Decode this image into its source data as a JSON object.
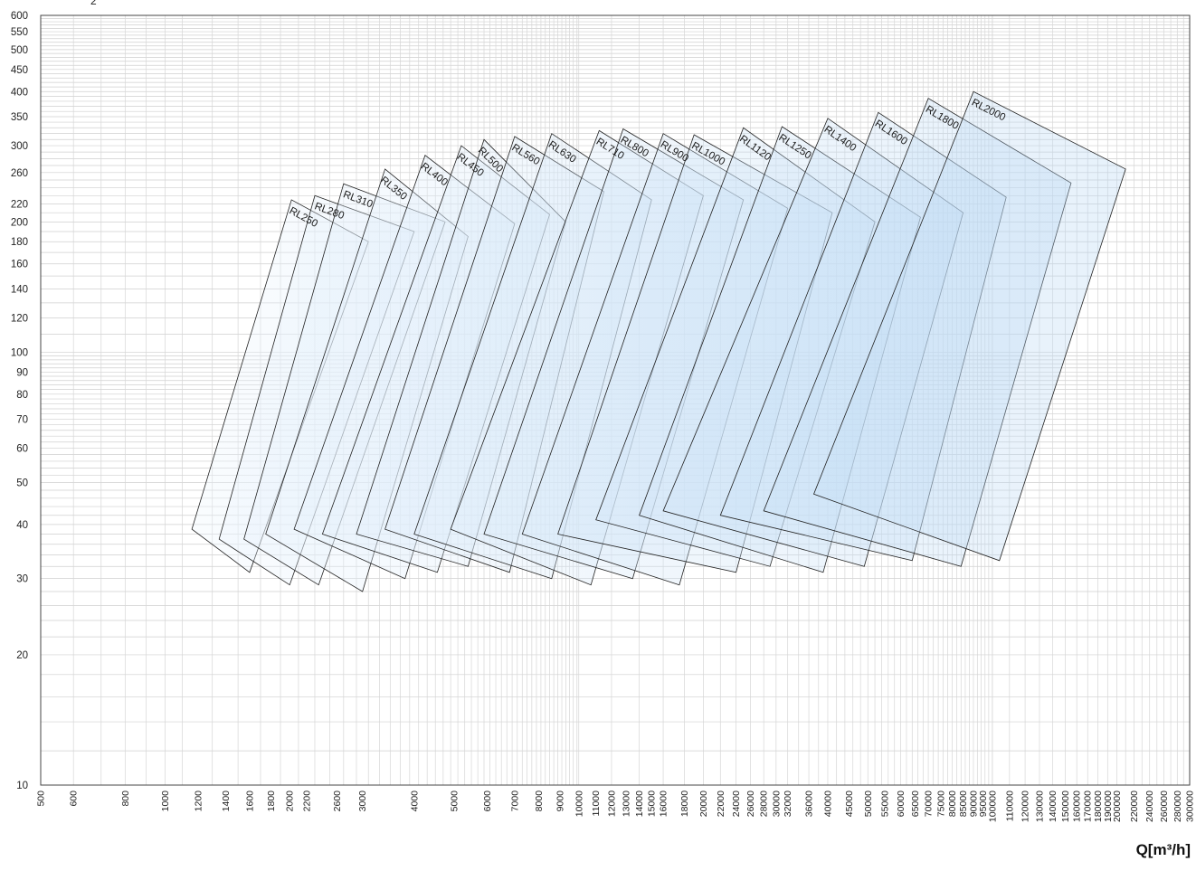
{
  "chart_data": {
    "type": "area",
    "title": "",
    "xlabel": "Q[m³/h]",
    "ylabel": "",
    "ylabel_fragment": "2",
    "x_scale": "log",
    "y_scale": "log",
    "xlim": [
      500,
      300000
    ],
    "ylim": [
      10,
      600
    ],
    "grid": true,
    "y_ticks": [
      10,
      20,
      30,
      40,
      50,
      60,
      70,
      80,
      90,
      100,
      120,
      140,
      160,
      180,
      200,
      220,
      260,
      300,
      350,
      400,
      450,
      500,
      550,
      600
    ],
    "x_ticks": [
      500,
      600,
      800,
      1000,
      1200,
      1400,
      1600,
      1800,
      2000,
      2200,
      2600,
      3000,
      4000,
      5000,
      6000,
      7000,
      8000,
      9000,
      10000,
      11000,
      12000,
      13000,
      14000,
      15000,
      16000,
      18000,
      20000,
      22000,
      24000,
      26000,
      28000,
      30000,
      32000,
      36000,
      40000,
      45000,
      50000,
      55000,
      60000,
      65000,
      70000,
      75000,
      80000,
      85000,
      90000,
      95000,
      100000,
      110000,
      120000,
      130000,
      140000,
      150000,
      160000,
      170000,
      180000,
      190000,
      200000,
      220000,
      240000,
      260000,
      280000,
      300000
    ],
    "fill_colors": {
      "start": "#f2f8fe",
      "end": "#b3d4f2"
    },
    "series": [
      {
        "name": "RL250",
        "points": [
          [
            1160,
            39
          ],
          [
            2020,
            225
          ],
          [
            3100,
            180
          ],
          [
            1600,
            31
          ]
        ]
      },
      {
        "name": "RL280",
        "points": [
          [
            1350,
            37
          ],
          [
            2300,
            230
          ],
          [
            4000,
            190
          ],
          [
            2000,
            29
          ]
        ]
      },
      {
        "name": "RL310",
        "points": [
          [
            1550,
            37
          ],
          [
            2700,
            245
          ],
          [
            4750,
            200
          ],
          [
            2350,
            29
          ]
        ]
      },
      {
        "name": "RL350",
        "points": [
          [
            1750,
            38
          ],
          [
            3400,
            265
          ],
          [
            5400,
            185
          ],
          [
            3000,
            28
          ]
        ]
      },
      {
        "name": "RL400",
        "points": [
          [
            2050,
            39
          ],
          [
            4250,
            285
          ],
          [
            7000,
            198
          ],
          [
            3800,
            30
          ]
        ]
      },
      {
        "name": "RL450",
        "points": [
          [
            2400,
            38
          ],
          [
            5200,
            300
          ],
          [
            8500,
            208
          ],
          [
            4550,
            31
          ]
        ]
      },
      {
        "name": "RL500",
        "points": [
          [
            2900,
            38
          ],
          [
            5900,
            310
          ],
          [
            9300,
            200
          ],
          [
            5400,
            32
          ]
        ]
      },
      {
        "name": "RL560",
        "points": [
          [
            3400,
            39
          ],
          [
            7000,
            315
          ],
          [
            11500,
            235
          ],
          [
            6800,
            31
          ]
        ]
      },
      {
        "name": "RL630",
        "points": [
          [
            4000,
            38
          ],
          [
            8600,
            320
          ],
          [
            15000,
            225
          ],
          [
            8600,
            30
          ]
        ]
      },
      {
        "name": "RL710",
        "points": [
          [
            4900,
            39
          ],
          [
            11200,
            325
          ],
          [
            20000,
            230
          ],
          [
            10700,
            29
          ]
        ]
      },
      {
        "name": "RL800",
        "points": [
          [
            5900,
            38
          ],
          [
            12800,
            328
          ],
          [
            25000,
            225
          ],
          [
            13500,
            30
          ]
        ]
      },
      {
        "name": "RL900",
        "points": [
          [
            7300,
            38
          ],
          [
            16000,
            320
          ],
          [
            32000,
            215
          ],
          [
            17500,
            29
          ]
        ]
      },
      {
        "name": "RL1000",
        "points": [
          [
            8900,
            38
          ],
          [
            19000,
            318
          ],
          [
            41000,
            210
          ],
          [
            24000,
            31
          ]
        ]
      },
      {
        "name": "RL1120",
        "points": [
          [
            11000,
            41
          ],
          [
            25000,
            330
          ],
          [
            52000,
            200
          ],
          [
            29000,
            32
          ]
        ]
      },
      {
        "name": "RL1250",
        "points": [
          [
            14000,
            42
          ],
          [
            31000,
            332
          ],
          [
            67000,
            205
          ],
          [
            39000,
            31
          ]
        ]
      },
      {
        "name": "RL1400",
        "points": [
          [
            16000,
            43
          ],
          [
            40000,
            347
          ],
          [
            85000,
            210
          ],
          [
            49000,
            32
          ]
        ]
      },
      {
        "name": "RL1600",
        "points": [
          [
            22000,
            42
          ],
          [
            53000,
            358
          ],
          [
            108000,
            228
          ],
          [
            64000,
            33
          ]
        ]
      },
      {
        "name": "RL1800",
        "points": [
          [
            28000,
            43
          ],
          [
            70000,
            386
          ],
          [
            155000,
            246
          ],
          [
            84000,
            32
          ]
        ]
      },
      {
        "name": "RL2000",
        "points": [
          [
            37000,
            47
          ],
          [
            90000,
            400
          ],
          [
            210000,
            265
          ],
          [
            104000,
            33
          ]
        ]
      }
    ]
  }
}
